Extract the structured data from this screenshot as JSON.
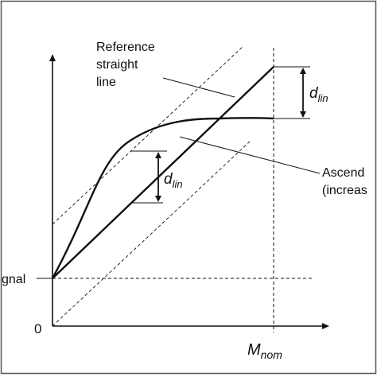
{
  "labels": {
    "reference_line_1": "Reference",
    "reference_line_2": "straight",
    "reference_line_3": "line",
    "ascending_1": "Ascend",
    "ascending_2": "(increas",
    "signal": "gnal",
    "origin": "0",
    "d_lin_main": "d",
    "d_lin_sub": "lin",
    "m_nom_main": "M",
    "m_nom_sub": "nom"
  },
  "colors": {
    "line": "#111111",
    "frame": "#555555",
    "background": "#ffffff"
  }
}
